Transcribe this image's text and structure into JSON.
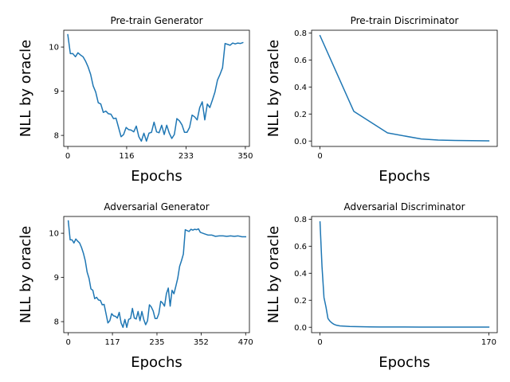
{
  "chart_data": [
    {
      "type": "line",
      "title": "Pre-train Generator",
      "xlabel": "Epochs",
      "ylabel": "NLL by oracle",
      "xlim": [
        -8,
        358
      ],
      "ylim": [
        7.75,
        10.38
      ],
      "xticks": [
        0,
        116,
        233,
        350
      ],
      "yticks": [
        8,
        9,
        10
      ],
      "series": [
        {
          "x": [
            0,
            5,
            10,
            15,
            20,
            25,
            30,
            35,
            40,
            45,
            50,
            55,
            60,
            65,
            70,
            75,
            80,
            85,
            90,
            95,
            100,
            105,
            110,
            115,
            120,
            125,
            130,
            135,
            140,
            145,
            150,
            155,
            160,
            165,
            170,
            175,
            180,
            185,
            190,
            195,
            200,
            205,
            210,
            215,
            220,
            225,
            230,
            235,
            240,
            245,
            250,
            255,
            260,
            265,
            270,
            275,
            280,
            285,
            290,
            295,
            300,
            305,
            310,
            315,
            320,
            325,
            330,
            335,
            340,
            345
          ],
          "values": [
            10.28,
            9.85,
            9.85,
            9.78,
            9.87,
            9.82,
            9.78,
            9.68,
            9.55,
            9.38,
            9.12,
            8.98,
            8.74,
            8.71,
            8.52,
            8.55,
            8.49,
            8.48,
            8.38,
            8.39,
            8.18,
            7.97,
            8.02,
            8.18,
            8.13,
            8.12,
            8.08,
            8.21,
            7.97,
            7.87,
            8.05,
            7.87,
            8.05,
            8.07,
            8.3,
            8.08,
            8.06,
            8.23,
            8.02,
            8.23,
            8.05,
            7.93,
            8.02,
            8.38,
            8.33,
            8.24,
            8.07,
            8.07,
            8.18,
            8.46,
            8.42,
            8.35,
            8.63,
            8.76,
            8.35,
            8.71,
            8.63,
            8.8,
            8.98,
            9.25,
            9.38,
            9.53,
            10.08,
            10.06,
            10.04,
            10.09,
            10.07,
            10.09,
            10.08,
            10.1
          ]
        }
      ]
    },
    {
      "type": "line",
      "title": "Pre-train Discriminator",
      "xlabel": "Epochs",
      "ylabel": "NLL by oracle",
      "xlim": [
        -0.25,
        5.25
      ],
      "ylim": [
        -0.04,
        0.82
      ],
      "xticks": [
        0
      ],
      "yticks": [
        0.0,
        0.2,
        0.4,
        0.6,
        0.8
      ],
      "series": [
        {
          "x": [
            0,
            0.5,
            1,
            2,
            3,
            3.5,
            4,
            5
          ],
          "values": [
            0.78,
            0.5,
            0.22,
            0.06,
            0.015,
            0.007,
            0.004,
            0.001
          ]
        }
      ]
    },
    {
      "type": "line",
      "title": "Adversarial Generator",
      "xlabel": "Epochs",
      "ylabel": "NLL by oracle",
      "xlim": [
        -12,
        480
      ],
      "ylim": [
        7.75,
        10.38
      ],
      "xticks": [
        0,
        117,
        235,
        352,
        470
      ],
      "yticks": [
        8,
        9,
        10
      ],
      "series": [
        {
          "x": [
            0,
            5,
            10,
            15,
            20,
            25,
            30,
            35,
            40,
            45,
            50,
            55,
            60,
            65,
            70,
            75,
            80,
            85,
            90,
            95,
            100,
            105,
            110,
            115,
            120,
            125,
            130,
            135,
            140,
            145,
            150,
            155,
            160,
            165,
            170,
            175,
            180,
            185,
            190,
            195,
            200,
            205,
            210,
            215,
            220,
            225,
            230,
            235,
            240,
            245,
            250,
            255,
            260,
            265,
            270,
            275,
            280,
            285,
            290,
            295,
            300,
            305,
            310,
            315,
            320,
            325,
            330,
            335,
            340,
            345,
            350,
            360,
            370,
            380,
            390,
            400,
            410,
            420,
            430,
            440,
            450,
            460,
            470
          ],
          "values": [
            10.28,
            9.85,
            9.85,
            9.78,
            9.87,
            9.82,
            9.78,
            9.68,
            9.55,
            9.38,
            9.12,
            8.98,
            8.74,
            8.71,
            8.52,
            8.55,
            8.49,
            8.48,
            8.38,
            8.39,
            8.18,
            7.97,
            8.02,
            8.18,
            8.13,
            8.12,
            8.08,
            8.21,
            7.97,
            7.87,
            8.05,
            7.87,
            8.05,
            8.07,
            8.3,
            8.08,
            8.06,
            8.23,
            8.02,
            8.23,
            8.05,
            7.93,
            8.02,
            8.38,
            8.33,
            8.24,
            8.07,
            8.07,
            8.18,
            8.46,
            8.42,
            8.35,
            8.63,
            8.76,
            8.35,
            8.71,
            8.63,
            8.8,
            8.98,
            9.25,
            9.38,
            9.53,
            10.08,
            10.06,
            10.04,
            10.09,
            10.07,
            10.09,
            10.08,
            10.1,
            10.02,
            9.99,
            9.96,
            9.96,
            9.93,
            9.94,
            9.94,
            9.93,
            9.94,
            9.93,
            9.94,
            9.92,
            9.92
          ]
        }
      ]
    },
    {
      "type": "line",
      "title": "Adversarial Discriminator",
      "xlabel": "Epochs",
      "ylabel": "NLL by oracle",
      "xlim": [
        -8.5,
        178.5
      ],
      "ylim": [
        -0.04,
        0.82
      ],
      "xticks": [
        0,
        170
      ],
      "yticks": [
        0.0,
        0.2,
        0.4,
        0.6,
        0.8
      ],
      "series": [
        {
          "x": [
            0,
            2,
            4,
            6,
            8,
            10,
            12,
            14,
            16,
            18,
            20,
            25,
            30,
            40,
            50,
            60,
            80,
            100,
            120,
            140,
            160,
            170
          ],
          "values": [
            0.78,
            0.45,
            0.22,
            0.15,
            0.065,
            0.045,
            0.032,
            0.022,
            0.016,
            0.013,
            0.01,
            0.008,
            0.006,
            0.004,
            0.003,
            0.002,
            0.002,
            0.001,
            0.001,
            0.001,
            0.001,
            0.001
          ]
        }
      ]
    }
  ]
}
